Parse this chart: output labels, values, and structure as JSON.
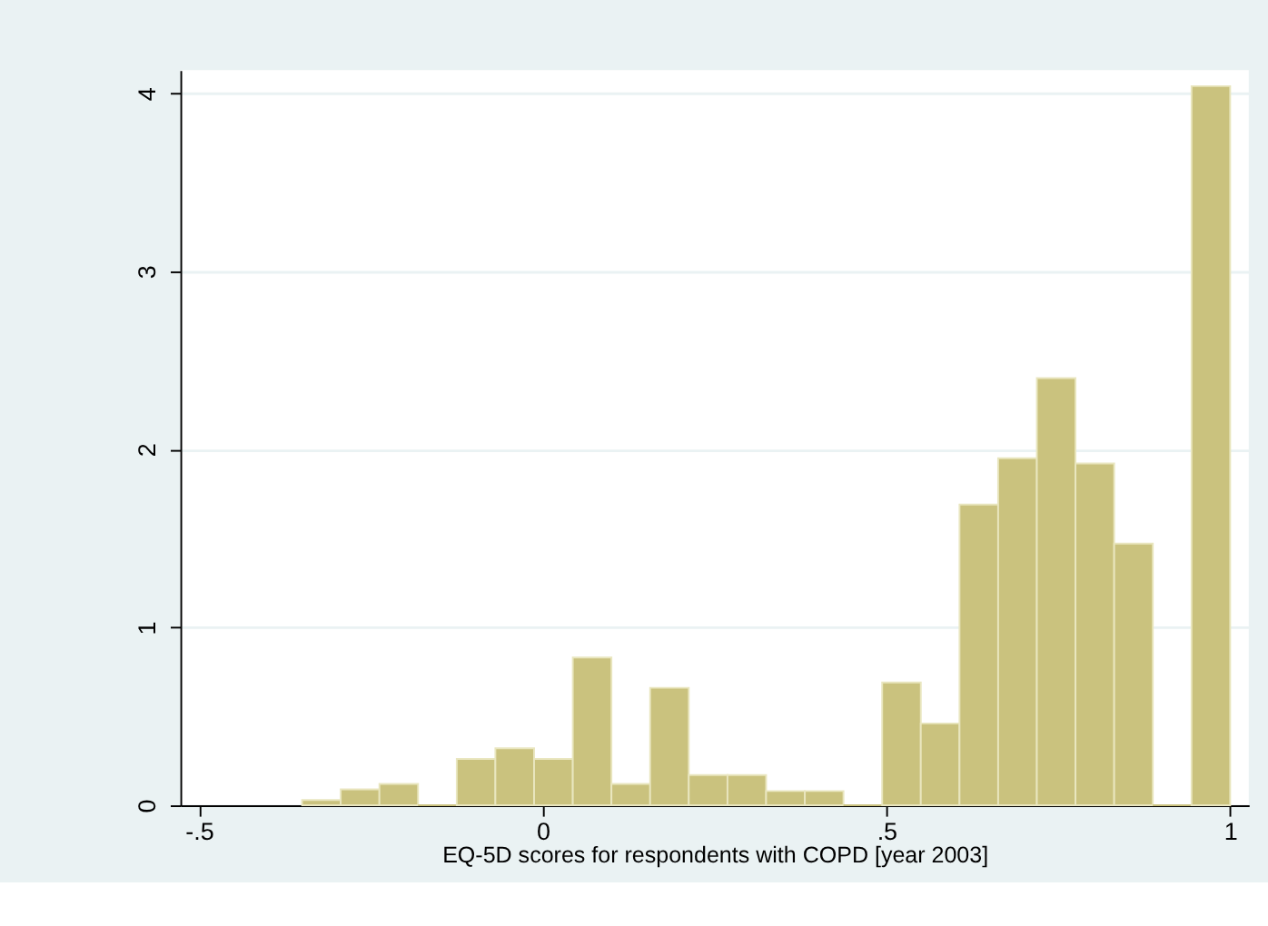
{
  "chart_data": {
    "type": "histogram",
    "xlabel": "EQ-5D scores for respondents with COPD [year 2003]",
    "bins": [
      -0.35,
      -0.2938,
      -0.2375,
      -0.1813,
      -0.125,
      -0.0688,
      -0.0125,
      0.0438,
      0.1,
      0.1563,
      0.2125,
      0.2688,
      0.325,
      0.3813,
      0.4375,
      0.4938,
      0.55,
      0.6063,
      0.6625,
      0.7188,
      0.775,
      0.8313,
      0.8875,
      0.9438,
      1.0
    ],
    "values": [
      0.03,
      0.09,
      0.12,
      0,
      0.26,
      0.32,
      0.26,
      0.83,
      0.12,
      0.66,
      0.17,
      0.17,
      0.08,
      0.08,
      0,
      0.69,
      0.46,
      1.69,
      1.95,
      2.4,
      1.92,
      1.47,
      0,
      4.04
    ],
    "color": "#cac27e",
    "xlim": [
      -0.527,
      1.027
    ],
    "ylim": [
      0,
      4.13
    ],
    "xticks": [
      {
        "value": -0.5,
        "label": "-.5"
      },
      0,
      {
        "value": 0.5,
        "label": ".5"
      },
      1
    ],
    "yticks": [
      0,
      1,
      2,
      3,
      4
    ],
    "grid": "y"
  }
}
